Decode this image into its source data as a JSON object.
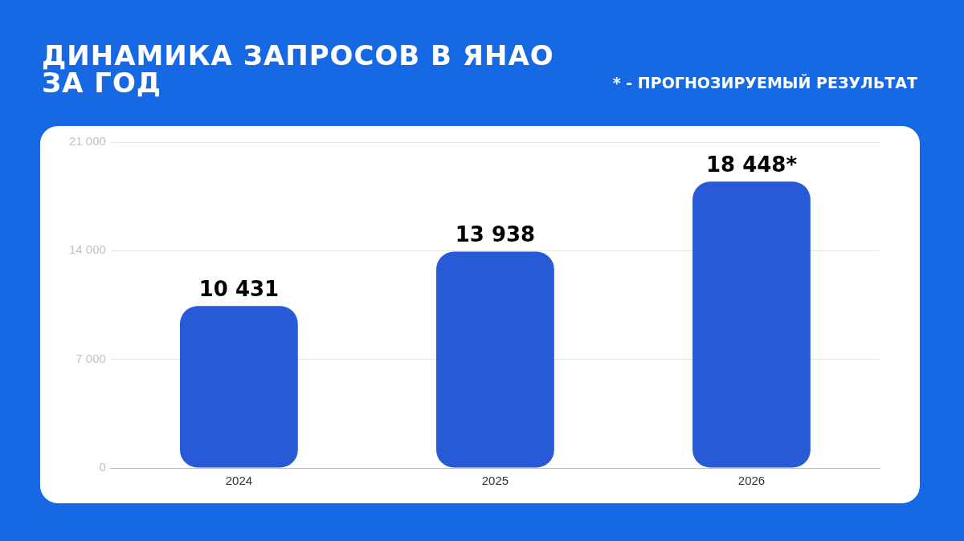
{
  "chart_data": {
    "type": "bar",
    "title": "ДИНАМИКА ЗАПРОСОВ В ЯНАО\nЗА ГОД",
    "annotations": [
      "* - ПРОГНОЗИРУЕМЫЙ РЕЗУЛЬТАТ"
    ],
    "categories": [
      "2024",
      "2025",
      "2026"
    ],
    "values": [
      10431,
      13938,
      18448
    ],
    "value_labels": [
      "10 431",
      "13 938",
      "18 448*"
    ],
    "color": "#2859d6",
    "ylim": [
      0,
      21000
    ],
    "yticks": [
      0,
      {
        "value": 7000,
        "label": "7 000"
      },
      {
        "value": 14000,
        "label": "14 000"
      },
      {
        "value": 21000,
        "label": "21 000"
      }
    ],
    "grid": "y",
    "legend": false
  }
}
